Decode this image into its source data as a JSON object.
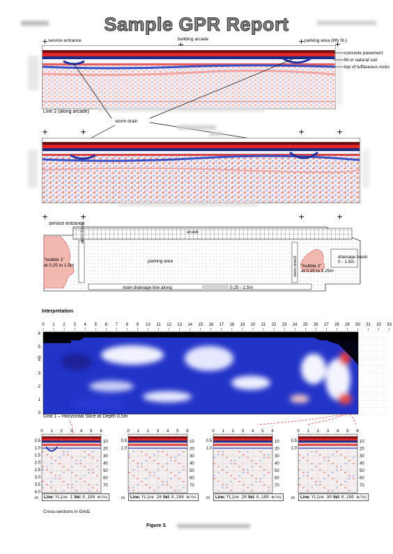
{
  "title": "Sample GPR Report",
  "line2": {
    "label_service_entrance": "service entrance",
    "label_building_arcade": "building arcade",
    "label_parking_area": "parking area (8th St.)",
    "caption": "Line 2 (along arcade)",
    "layers": [
      "concrete pavement",
      "fill or natural soil",
      "top of tuffaceous rocks"
    ]
  },
  "storm_drain_label": "storm drain",
  "plan": {
    "service_entrance": "service entrance",
    "parking_area": "parking area",
    "storm_drain1": "storm drain1",
    "storm_drain2": "storm drain2",
    "bubble1_name": "\"bubble 1\"",
    "bubble1_depth": "at 0.25 to 1.5m",
    "bubble2_name": "\"bubble 2\"",
    "bubble2_depth": "at 0.25 to 1.25m",
    "drainage_basin": "drainage basin",
    "drainage_basin_depth": "0 - 1.5m",
    "main_line_left": "main drainage line along",
    "main_line_right": "0.25 - 1.5m",
    "arcade_label": "arcade"
  },
  "interpretation": "Interpretation",
  "grid": {
    "x_ticks": [
      "0",
      "1",
      "2",
      "3",
      "4",
      "5",
      "6",
      "7",
      "8",
      "9",
      "10",
      "11",
      "12",
      "13",
      "14",
      "15",
      "16",
      "17",
      "18",
      "19",
      "20",
      "21",
      "22",
      "23",
      "24",
      "25",
      "26",
      "27",
      "28",
      "29",
      "30",
      "31",
      "32",
      "33"
    ],
    "y_ticks": [
      "6",
      "5",
      "4",
      "3",
      "2",
      "1",
      "0"
    ],
    "y_unit": "m",
    "caption": "Grid 1 – Horizontal Slice at Depth 0.5m"
  },
  "cross_sections": {
    "x_ticks": [
      "0",
      "1",
      "2",
      "3",
      "4",
      "5",
      "6"
    ],
    "depth_ticks": [
      "0.5",
      "1.0",
      "1.5",
      "2.0",
      "2.5",
      "3.0",
      "3.5",
      "4.0"
    ],
    "time_ticks": [
      "10",
      "20",
      "30",
      "40",
      "50",
      "60",
      "70"
    ],
    "unit_m": "m",
    "unit_ns": "ns",
    "line_label": "Line:",
    "vel_label": "Vel:",
    "panels": [
      {
        "line": "YLine 1",
        "vel": "0.100 m/ns"
      },
      {
        "line": "YLine 26",
        "vel": "0.100 m/ns"
      },
      {
        "line": "YLine 28",
        "vel": "0.100 m/ns"
      },
      {
        "line": "YLine 30",
        "vel": "0.100 m/ns"
      }
    ],
    "caption": "Cross-sections in Grid1"
  },
  "figure_label": "Figure 3."
}
